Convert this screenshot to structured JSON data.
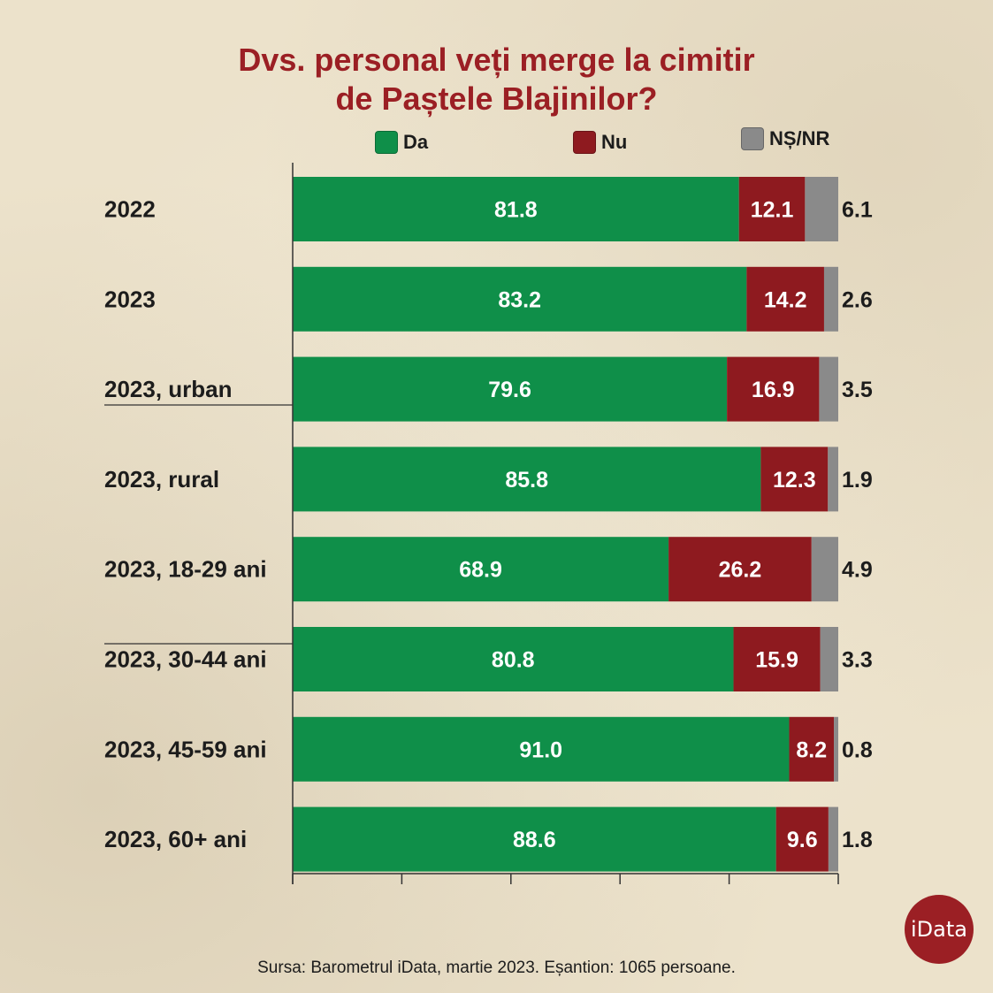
{
  "title": {
    "line1": "Dvs. personal veți merge la cimitir",
    "line2": "de Paștele Blajinilor?"
  },
  "legend": [
    {
      "label": "Da",
      "color": "#0f8f49"
    },
    {
      "label": "Nu",
      "color": "#8e1a1f"
    },
    {
      "label": "NȘ/NR",
      "color": "#8a8a8a"
    }
  ],
  "chart_data": {
    "type": "bar",
    "orientation": "horizontal",
    "stacked": true,
    "categories": [
      "2022",
      "2023",
      "2023, urban",
      "2023, rural",
      "2023, 18-29 ani",
      "2023, 30-44 ani",
      "2023, 45-59 ani",
      "2023, 60+ ani"
    ],
    "series": [
      {
        "name": "Da",
        "color": "#0f8f49",
        "values": [
          81.8,
          83.2,
          79.6,
          85.8,
          68.9,
          80.8,
          91.0,
          88.6
        ],
        "labels": [
          "81.8",
          "83.2",
          "79.6",
          "85.8",
          "68.9",
          "80.8",
          "91.0",
          "88.6"
        ]
      },
      {
        "name": "Nu",
        "color": "#8e1a1f",
        "values": [
          12.1,
          14.2,
          16.9,
          12.3,
          26.2,
          15.9,
          8.2,
          9.6
        ],
        "labels": [
          "12.1",
          "14.2",
          "16.9",
          "12.3",
          "26.2",
          "15.9",
          "8.2",
          "9.6"
        ]
      },
      {
        "name": "NȘ/NR",
        "color": "#8a8a8a",
        "values": [
          6.1,
          2.6,
          3.5,
          1.9,
          4.9,
          3.3,
          0.8,
          1.8
        ],
        "labels": [
          "6.1",
          "2.6",
          "3.5",
          "1.9",
          "4.9",
          "3.3",
          "0.8",
          "1.8"
        ]
      }
    ],
    "xlim": [
      0,
      100
    ],
    "title": "Dvs. personal veți merge la cimitir de Paștele Blajinilor?",
    "legend_position": "top"
  },
  "footer": {
    "source": "Sursa: Barometrul iData, martie 2023. Eșantion: 1065 persoane.",
    "logo_text": "iData"
  }
}
